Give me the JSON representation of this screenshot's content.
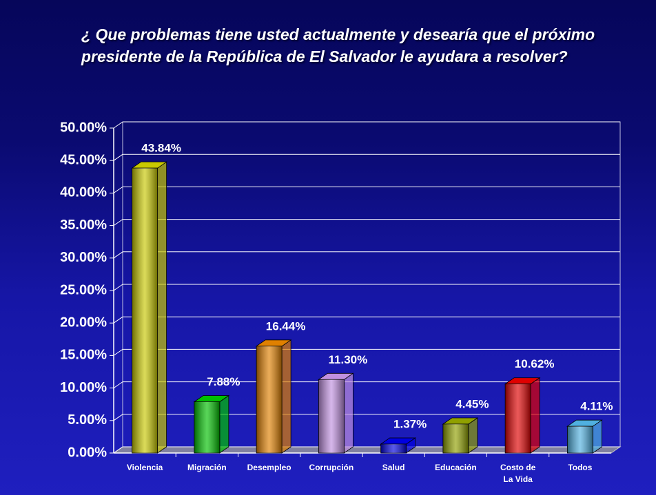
{
  "chart_data": {
    "type": "bar3d",
    "title": "¿ Que problemas tiene usted actualmente y desearía que el próximo presidente de la República de El Salvador le ayudara a resolver?",
    "categories": [
      "Violencia",
      "Migración",
      "Desempleo",
      "Corrupción",
      "Salud",
      "Educación",
      "Costo de La Vida",
      "Todos"
    ],
    "values": [
      43.84,
      7.88,
      16.44,
      11.3,
      1.37,
      4.45,
      10.62,
      4.11
    ],
    "value_labels": [
      "43.84%",
      "7.88%",
      "16.44%",
      "11.30%",
      "1.37%",
      "4.45%",
      "10.62%",
      "4.11%"
    ],
    "colors": [
      "#c8c800",
      "#00c000",
      "#e08000",
      "#c090e0",
      "#0000e0",
      "#90a000",
      "#e00000",
      "#50b0e0"
    ],
    "ylim": [
      0,
      50
    ],
    "yticks": [
      {
        "value": 0,
        "label": "0.00%"
      },
      {
        "value": 5,
        "label": "5.00%"
      },
      {
        "value": 10,
        "label": "10.00%"
      },
      {
        "value": 15,
        "label": "15.00%"
      },
      {
        "value": 20,
        "label": "20.00%"
      },
      {
        "value": 25,
        "label": "25.00%"
      },
      {
        "value": 30,
        "label": "30.00%"
      },
      {
        "value": 35,
        "label": "35.00%"
      },
      {
        "value": 40,
        "label": "40.00%"
      },
      {
        "value": 45,
        "label": "45.00%"
      },
      {
        "value": 50,
        "label": "50.00%"
      }
    ],
    "grid": true
  }
}
